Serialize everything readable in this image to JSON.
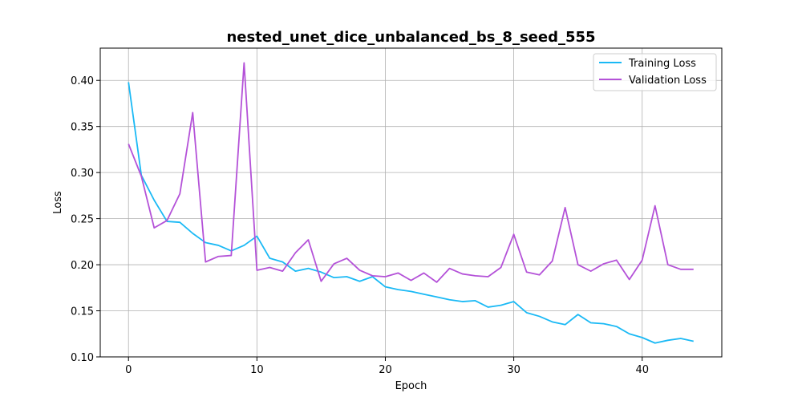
{
  "chart_data": {
    "type": "line",
    "title": "nested_unet_dice_unbalanced_bs_8_seed_555",
    "xlabel": "Epoch",
    "ylabel": "Loss",
    "xlim": [
      -2.2,
      46.2
    ],
    "ylim": [
      0.1,
      0.435
    ],
    "xticks": [
      0,
      10,
      20,
      30,
      40
    ],
    "yticks": [
      0.1,
      0.15,
      0.2,
      0.25,
      0.3,
      0.35,
      0.4
    ],
    "ytick_labels": [
      "0.10",
      "0.15",
      "0.20",
      "0.25",
      "0.30",
      "0.35",
      "0.40"
    ],
    "grid": true,
    "legend_position": "top-right",
    "x": [
      0,
      1,
      2,
      3,
      4,
      5,
      6,
      7,
      8,
      9,
      10,
      11,
      12,
      13,
      14,
      15,
      16,
      17,
      18,
      19,
      20,
      21,
      22,
      23,
      24,
      25,
      26,
      27,
      28,
      29,
      30,
      31,
      32,
      33,
      34,
      35,
      36,
      37,
      38,
      39,
      40,
      41,
      42,
      43,
      44
    ],
    "series": [
      {
        "name": "Training Loss",
        "color": "#1ab9f5",
        "values": [
          0.398,
          0.297,
          0.27,
          0.247,
          0.246,
          0.234,
          0.224,
          0.221,
          0.215,
          0.221,
          0.231,
          0.207,
          0.203,
          0.193,
          0.196,
          0.192,
          0.186,
          0.187,
          0.182,
          0.187,
          0.176,
          0.173,
          0.171,
          0.168,
          0.165,
          0.162,
          0.16,
          0.161,
          0.154,
          0.156,
          0.16,
          0.148,
          0.144,
          0.138,
          0.135,
          0.146,
          0.137,
          0.136,
          0.133,
          0.125,
          0.121,
          0.115,
          0.118,
          0.12,
          0.117
        ]
      },
      {
        "name": "Validation Loss",
        "color": "#b452d8",
        "values": [
          0.331,
          0.296,
          0.24,
          0.248,
          0.277,
          0.365,
          0.203,
          0.209,
          0.21,
          0.419,
          0.194,
          0.197,
          0.193,
          0.213,
          0.227,
          0.182,
          0.201,
          0.207,
          0.194,
          0.188,
          0.187,
          0.191,
          0.183,
          0.191,
          0.181,
          0.196,
          0.19,
          0.188,
          0.187,
          0.197,
          0.233,
          0.192,
          0.189,
          0.204,
          0.262,
          0.2,
          0.193,
          0.201,
          0.205,
          0.184,
          0.205,
          0.264,
          0.2,
          0.195,
          0.195
        ]
      }
    ]
  }
}
